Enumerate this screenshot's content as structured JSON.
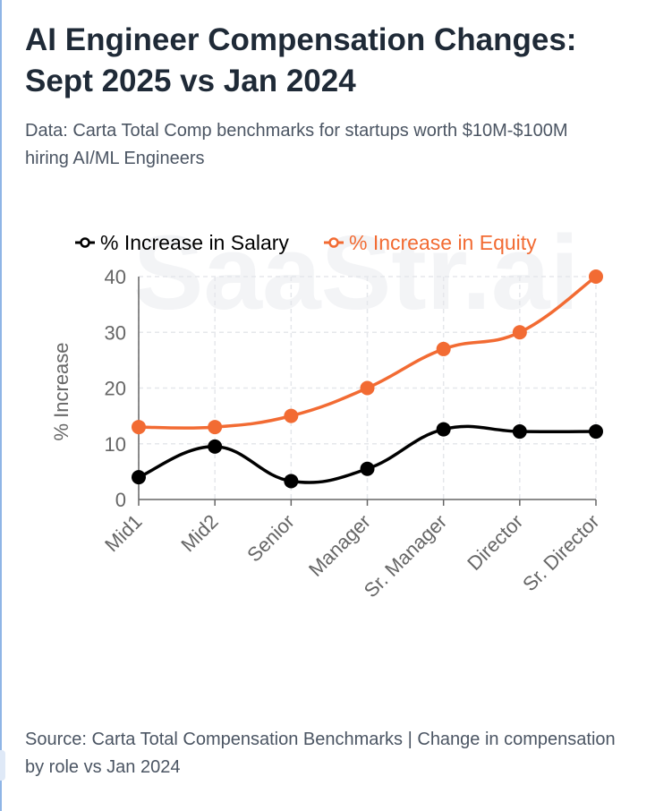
{
  "header": {
    "title": "AI Engineer Compensation Changes: Sept 2025 vs Jan 2024",
    "subtitle": "Data: Carta Total Comp benchmarks for startups worth $10M-$100M hiring AI/ML Engineers"
  },
  "footer": {
    "source": "Source: Carta Total Compensation Benchmarks | Change in compensation by role vs Jan 2024"
  },
  "watermark": "SaaStr.ai",
  "colors": {
    "salary": "#000000",
    "equity": "#f26b33",
    "grid": "#e5e7eb",
    "axis_text": "#666666"
  },
  "chart_data": {
    "type": "line",
    "title": "AI Engineer Compensation Changes: Sept 2025 vs Jan 2024",
    "xlabel": "",
    "ylabel": "% Increase",
    "ylim": [
      0,
      40
    ],
    "yticks": [
      0,
      10,
      20,
      30,
      40
    ],
    "grid": true,
    "legend_position": "top",
    "categories": [
      "Mid1",
      "Mid2",
      "Senior",
      "Manager",
      "Sr. Manager",
      "Director",
      "Sr. Director"
    ],
    "series": [
      {
        "name": "% Increase in Salary",
        "color": "#000000",
        "values": [
          4,
          9.5,
          3.3,
          5.5,
          12.6,
          12.2,
          12.2
        ]
      },
      {
        "name": "% Increase in Equity",
        "color": "#f26b33",
        "values": [
          13,
          13,
          15,
          20,
          27,
          30,
          40
        ]
      }
    ]
  }
}
